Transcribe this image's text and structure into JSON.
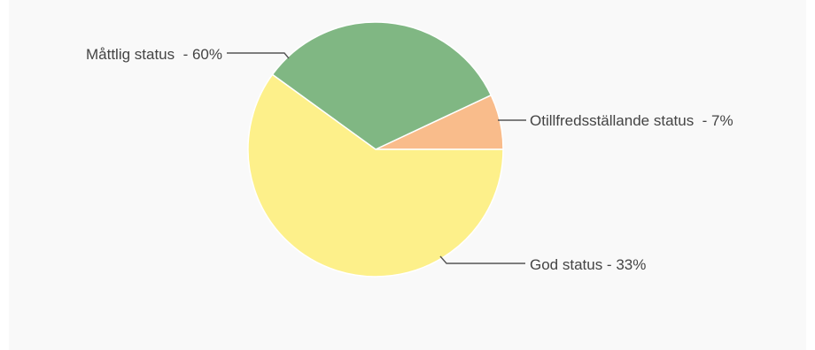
{
  "chart_data": {
    "type": "pie",
    "slices": [
      {
        "label": "Otillfredsställande status  - 7%",
        "value": 7,
        "color": "#f9bc8b"
      },
      {
        "label": "God status - 33%",
        "value": 33,
        "color": "#80b783"
      },
      {
        "label": "Måttlig status  - 60%",
        "value": 60,
        "color": "#fdf08a"
      }
    ]
  }
}
